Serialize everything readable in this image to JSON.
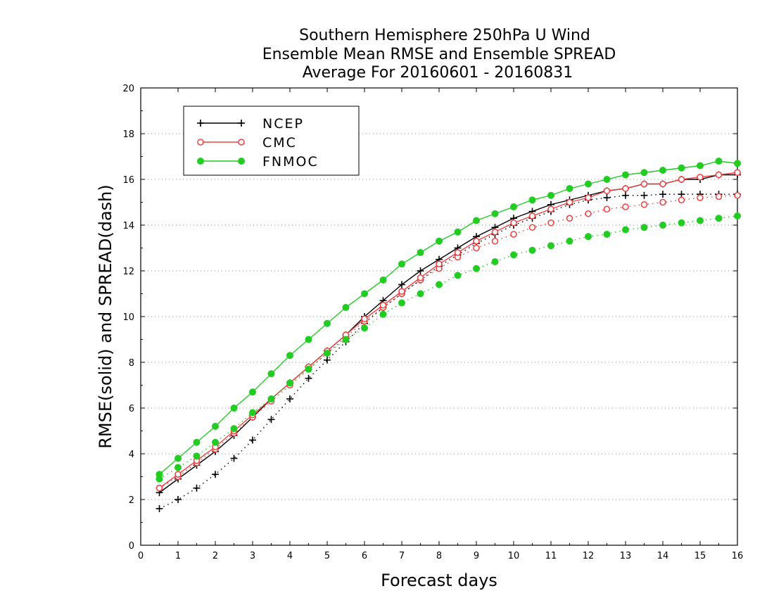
{
  "chart_data": {
    "type": "line",
    "title": [
      "Southern Hemisphere 250hPa U Wind",
      "Ensemble Mean RMSE and Ensemble SPREAD",
      "Average For 20160601 - 20160831"
    ],
    "xlabel": "Forecast days",
    "ylabel": "RMSE(solid) and SPREAD(dash)",
    "xlim": [
      0,
      16
    ],
    "ylim": [
      0,
      20
    ],
    "xticks": [
      "0",
      "1",
      "2",
      "3",
      "4",
      "5",
      "6",
      "7",
      "8",
      "9",
      "10",
      "11",
      "12",
      "13",
      "14",
      "15",
      "16"
    ],
    "yticks": [
      "0",
      "2",
      "4",
      "6",
      "8",
      "10",
      "12",
      "14",
      "16",
      "18",
      "20"
    ],
    "grid": "horizontal dotted",
    "legend_position": "top-left",
    "x": [
      0.5,
      1,
      1.5,
      2,
      2.5,
      3,
      3.5,
      4,
      4.5,
      5,
      5.5,
      6,
      6.5,
      7,
      7.5,
      8,
      8.5,
      9,
      9.5,
      10,
      10.5,
      11,
      11.5,
      12,
      12.5,
      13,
      13.5,
      14,
      14.5,
      15,
      15.5,
      16
    ],
    "series": [
      {
        "name": "NCEP",
        "color": "#000000",
        "marker": "plus",
        "rmse": [
          2.3,
          2.9,
          3.5,
          4.1,
          4.8,
          5.6,
          6.4,
          7.1,
          7.8,
          8.5,
          9.2,
          10.0,
          10.7,
          11.4,
          12.0,
          12.5,
          13.0,
          13.5,
          13.9,
          14.3,
          14.6,
          14.9,
          15.1,
          15.3,
          15.5,
          15.6,
          15.8,
          15.8,
          16.0,
          16.0,
          16.2,
          16.2
        ],
        "spread": [
          1.6,
          2.0,
          2.5,
          3.1,
          3.8,
          4.6,
          5.5,
          6.4,
          7.3,
          8.1,
          8.9,
          9.7,
          10.4,
          11.0,
          11.6,
          12.2,
          12.7,
          13.2,
          13.6,
          14.0,
          14.3,
          14.6,
          14.9,
          15.1,
          15.2,
          15.3,
          15.3,
          15.35,
          15.35,
          15.35,
          15.35,
          15.35
        ]
      },
      {
        "name": "CMC",
        "color": "#ee4444",
        "marker": "open-circle",
        "rmse": [
          2.5,
          3.1,
          3.7,
          4.3,
          5.0,
          5.7,
          6.4,
          7.1,
          7.8,
          8.5,
          9.2,
          9.9,
          10.5,
          11.1,
          11.7,
          12.3,
          12.8,
          13.3,
          13.7,
          14.1,
          14.4,
          14.7,
          15.0,
          15.2,
          15.5,
          15.6,
          15.8,
          15.8,
          16.0,
          16.1,
          16.2,
          16.3
        ],
        "spread": [
          2.5,
          3.0,
          3.6,
          4.2,
          4.9,
          5.6,
          6.3,
          7.0,
          7.7,
          8.4,
          9.1,
          9.8,
          10.4,
          11.0,
          11.6,
          12.1,
          12.6,
          13.0,
          13.3,
          13.6,
          13.9,
          14.1,
          14.3,
          14.5,
          14.7,
          14.8,
          14.9,
          15.0,
          15.1,
          15.2,
          15.25,
          15.3
        ]
      },
      {
        "name": "FNMOC",
        "color": "#22cc22",
        "marker": "filled-circle",
        "rmse": [
          3.1,
          3.8,
          4.5,
          5.2,
          6.0,
          6.7,
          7.5,
          8.3,
          9.0,
          9.7,
          10.4,
          11.0,
          11.6,
          12.3,
          12.8,
          13.3,
          13.7,
          14.2,
          14.5,
          14.8,
          15.1,
          15.3,
          15.6,
          15.8,
          16.0,
          16.2,
          16.3,
          16.4,
          16.5,
          16.6,
          16.8,
          16.7
        ],
        "spread": [
          2.9,
          3.4,
          3.9,
          4.5,
          5.1,
          5.8,
          6.4,
          7.1,
          7.7,
          8.4,
          9.0,
          9.5,
          10.1,
          10.6,
          11.0,
          11.4,
          11.8,
          12.1,
          12.4,
          12.7,
          12.9,
          13.1,
          13.3,
          13.5,
          13.6,
          13.8,
          13.9,
          14.0,
          14.1,
          14.2,
          14.3,
          14.4
        ]
      }
    ]
  }
}
